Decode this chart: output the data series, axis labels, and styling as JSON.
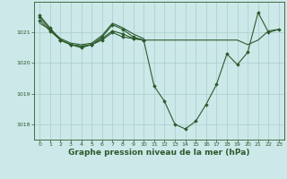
{
  "background_color": "#cce8e8",
  "grid_color": "#aacccc",
  "line_color": "#2d5a2d",
  "marker_color": "#2d5a2d",
  "xlabel": "Graphe pression niveau de la mer (hPa)",
  "xlabel_fontsize": 6.5,
  "ylim": [
    1017.5,
    1022.0
  ],
  "xlim": [
    -0.5,
    23.5
  ],
  "yticks": [
    1018,
    1019,
    1020,
    1021
  ],
  "xticks": [
    0,
    1,
    2,
    3,
    4,
    5,
    6,
    7,
    8,
    9,
    10,
    11,
    12,
    13,
    14,
    15,
    16,
    17,
    18,
    19,
    20,
    21,
    22,
    23
  ],
  "series": [
    {
      "x": [
        0,
        1,
        2,
        3,
        4,
        5,
        6,
        7,
        8,
        9,
        10,
        11,
        12,
        13,
        14,
        15,
        16,
        17,
        18,
        19,
        20,
        21,
        22,
        23
      ],
      "y": [
        1021.55,
        1021.15,
        1020.75,
        1020.6,
        1020.55,
        1020.6,
        1020.8,
        1021.05,
        1020.95,
        1020.8,
        1020.75,
        1019.25,
        1018.75,
        1018.0,
        1017.85,
        1018.1,
        1018.65,
        1019.3,
        1020.3,
        1019.95,
        1020.35,
        1021.65,
        1021.0,
        1021.1
      ],
      "has_markers": true
    },
    {
      "x": [
        0,
        1,
        2,
        3,
        4,
        5,
        6,
        7,
        8,
        9,
        10
      ],
      "y": [
        1021.4,
        1021.05,
        1020.75,
        1020.6,
        1020.55,
        1020.6,
        1020.85,
        1021.25,
        1021.1,
        1020.85,
        1020.75
      ],
      "has_markers": true
    },
    {
      "x": [
        0,
        1,
        2,
        3,
        4,
        5,
        6,
        7,
        8,
        9,
        10
      ],
      "y": [
        1021.5,
        1021.1,
        1020.75,
        1020.6,
        1020.5,
        1020.6,
        1020.75,
        1021.0,
        1020.85,
        1020.8,
        1020.75
      ],
      "has_markers": true
    },
    {
      "x": [
        10,
        11,
        12,
        13,
        14,
        15,
        16,
        17,
        18,
        19,
        20,
        21,
        22,
        23
      ],
      "y": [
        1020.75,
        1020.75,
        1020.75,
        1020.75,
        1020.75,
        1020.75,
        1020.75,
        1020.75,
        1020.75,
        1020.75,
        1020.6,
        1020.75,
        1021.05,
        1021.1
      ],
      "has_markers": false
    },
    {
      "x": [
        0,
        1,
        2,
        3,
        4,
        5,
        6,
        7,
        8,
        9,
        10
      ],
      "y": [
        1021.3,
        1021.1,
        1020.8,
        1020.65,
        1020.6,
        1020.65,
        1020.9,
        1021.3,
        1021.15,
        1020.95,
        1020.8
      ],
      "has_markers": false
    }
  ]
}
